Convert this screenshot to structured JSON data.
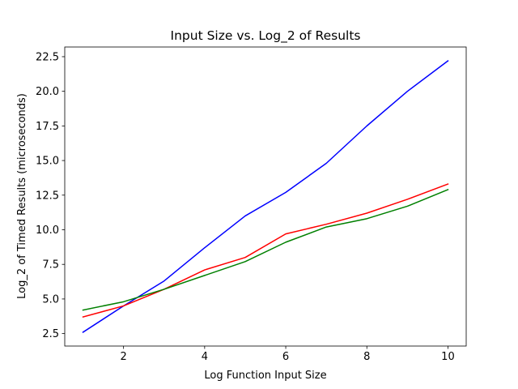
{
  "chart_data": {
    "type": "line",
    "title": "Input Size vs. Log_2 of Results",
    "xlabel": "Log Function Input Size",
    "ylabel": "Log_2 of Timed Results (microseconds)",
    "xlim": [
      0.55,
      10.45
    ],
    "ylim": [
      1.6,
      23.2
    ],
    "xticks": [
      2,
      4,
      6,
      8,
      10
    ],
    "yticks": [
      2.5,
      5.0,
      7.5,
      10.0,
      12.5,
      15.0,
      17.5,
      20.0,
      22.5
    ],
    "ytick_labels": [
      "2.5",
      "5.0",
      "7.5",
      "10.0",
      "12.5",
      "15.0",
      "17.5",
      "20.0",
      "22.5"
    ],
    "x": [
      1,
      2,
      3,
      4,
      5,
      6,
      7,
      8,
      9,
      10
    ],
    "grid": false,
    "legend": "none",
    "series": [
      {
        "color": "#0000ff",
        "values": [
          2.6,
          4.5,
          6.3,
          8.7,
          11.0,
          12.7,
          14.8,
          17.5,
          20.0,
          22.2
        ]
      },
      {
        "color": "#ff0000",
        "values": [
          3.7,
          4.5,
          5.7,
          7.1,
          8.0,
          9.7,
          10.4,
          11.2,
          12.2,
          13.3
        ]
      },
      {
        "color": "#008000",
        "values": [
          4.2,
          4.8,
          5.7,
          6.7,
          7.7,
          9.1,
          10.2,
          10.8,
          11.7,
          12.9
        ]
      }
    ]
  }
}
